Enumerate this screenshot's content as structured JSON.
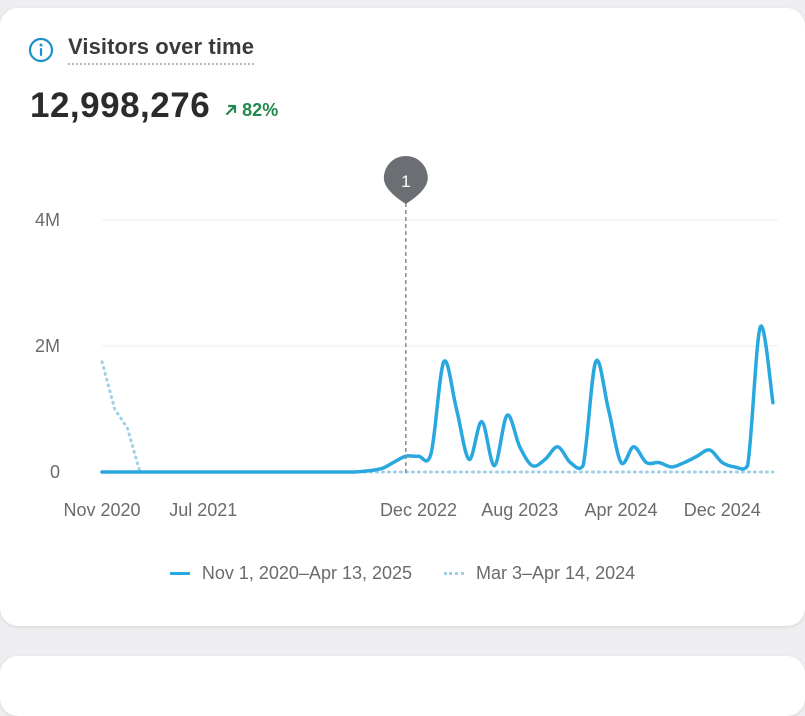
{
  "card": {
    "title": "Visitors over time",
    "icon": "info-icon",
    "total": "12,998,276",
    "change": "82%",
    "change_direction": "up",
    "colors": {
      "primary": "#29a8e0",
      "comparison": "#9fd0e8",
      "positive": "#1f8a4c"
    }
  },
  "chart_data": {
    "type": "line",
    "yticks": [
      "0",
      "2M",
      "4M"
    ],
    "ylim": [
      0,
      4000000
    ],
    "xticks": [
      "Nov 2020",
      "Jul 2021",
      "Dec 2022",
      "Aug 2023",
      "Apr 2024",
      "Dec 2024"
    ],
    "x_range": [
      "Nov 2020",
      "Apr 2025"
    ],
    "grid": true,
    "legend_position": "bottom",
    "annotation": {
      "label": "1",
      "x": "Nov 2022"
    },
    "series": [
      {
        "name": "Nov 1, 2020–Apr 13, 2025",
        "style": "solid",
        "color": "#29a8e0",
        "x": [
          "Nov 2020",
          "Jan 2021",
          "Mar 2021",
          "May 2021",
          "Jul 2021",
          "Sep 2021",
          "Nov 2021",
          "Jan 2022",
          "Mar 2022",
          "May 2022",
          "Jul 2022",
          "Sep 2022",
          "Oct 2022",
          "Nov 2022",
          "Dec 2022",
          "Jan 2023",
          "Feb 2023",
          "Mar 2023",
          "Apr 2023",
          "May 2023",
          "Jun 2023",
          "Jul 2023",
          "Aug 2023",
          "Sep 2023",
          "Oct 2023",
          "Nov 2023",
          "Dec 2023",
          "Jan 2024",
          "Feb 2024",
          "Mar 2024",
          "Apr 2024",
          "May 2024",
          "Jun 2024",
          "Jul 2024",
          "Aug 2024",
          "Sep 2024",
          "Oct 2024",
          "Nov 2024",
          "Dec 2024",
          "Jan 2025",
          "Feb 2025",
          "Mar 2025",
          "Apr 2025"
        ],
        "y": [
          0,
          0,
          0,
          0,
          0,
          0,
          0,
          0,
          0,
          0,
          0,
          50000,
          150000,
          250000,
          250000,
          300000,
          1750000,
          1000000,
          200000,
          800000,
          100000,
          900000,
          400000,
          100000,
          200000,
          400000,
          150000,
          100000,
          1750000,
          1000000,
          150000,
          400000,
          150000,
          150000,
          80000,
          150000,
          250000,
          350000,
          150000,
          80000,
          100000,
          2300000,
          1100000
        ]
      },
      {
        "name": "Mar 3–Apr 14, 2024",
        "style": "dotted",
        "color": "#9fd0e8",
        "x": [
          "Nov 2020",
          "Dec 2020",
          "Jan 2021",
          "Feb 2021",
          "Mar 2021",
          "Apr 2025"
        ],
        "y": [
          1750000,
          1000000,
          700000,
          0,
          0,
          0
        ]
      }
    ]
  },
  "legend": [
    {
      "label": "Nov 1, 2020–Apr 13, 2025",
      "style": "solid"
    },
    {
      "label": "Mar 3–Apr 14, 2024",
      "style": "dotted"
    }
  ]
}
